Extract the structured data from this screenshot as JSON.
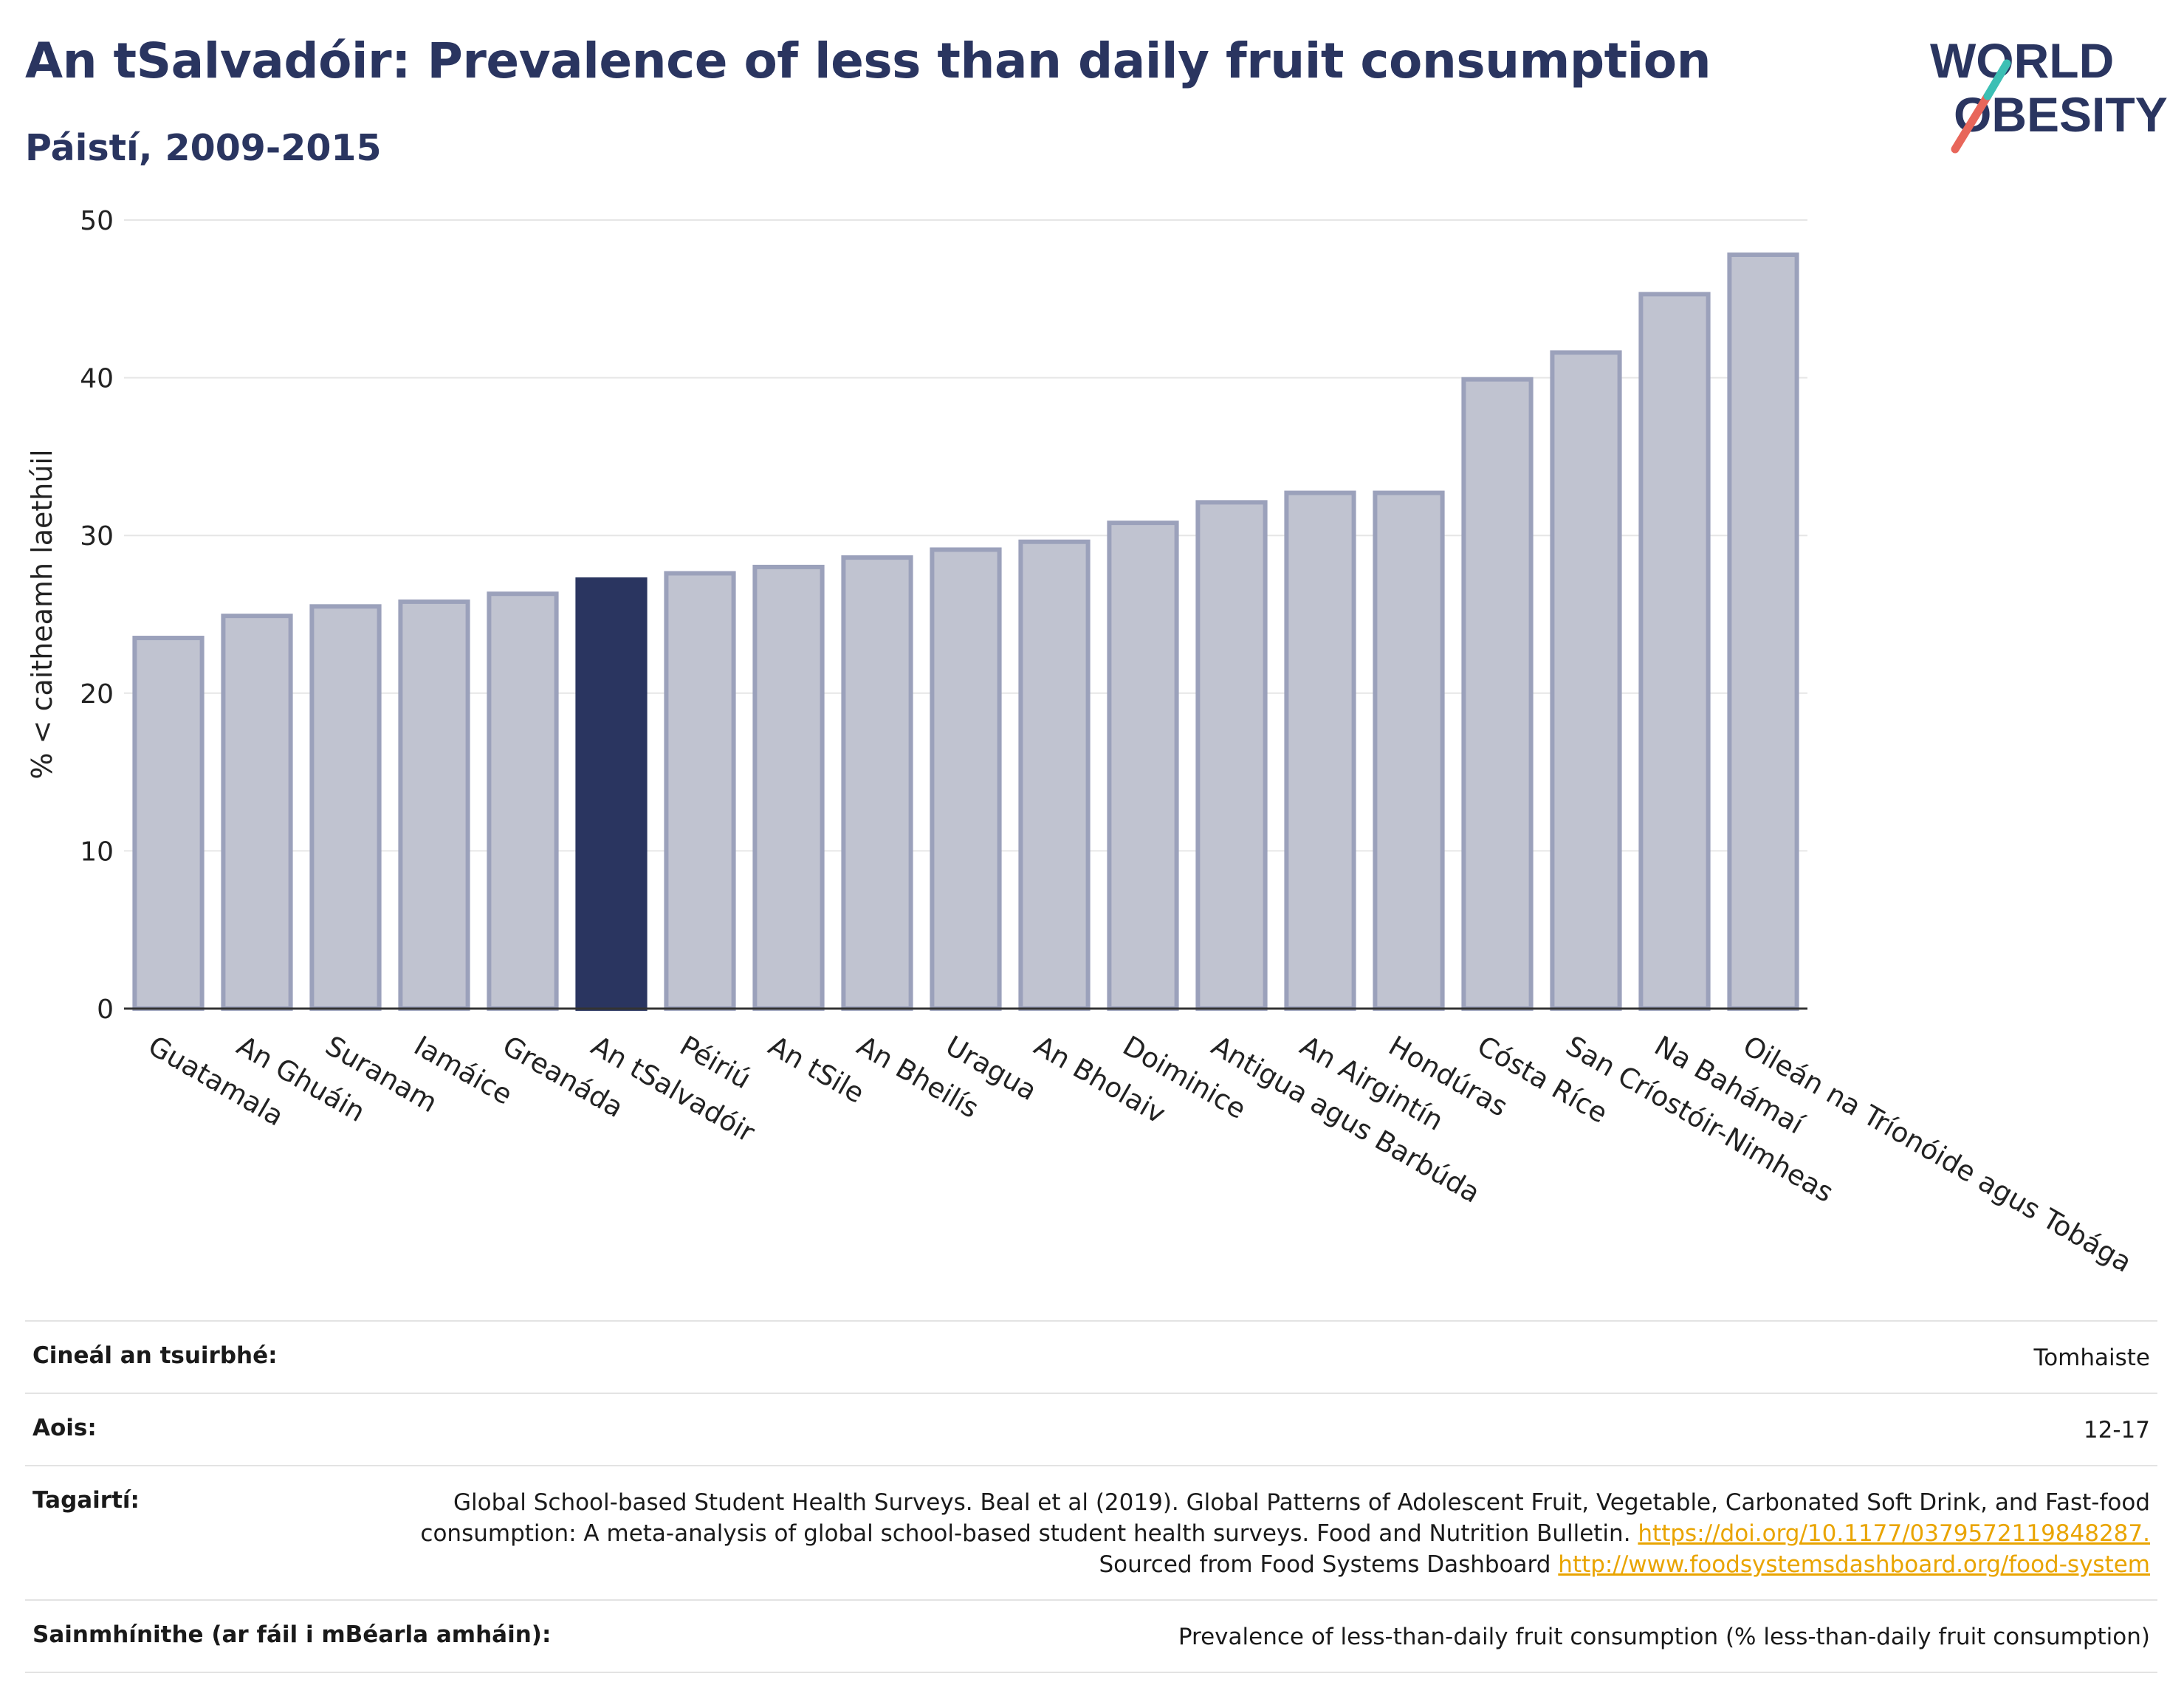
{
  "header": {
    "title": "An tSalvadóir: Prevalence of less than daily fruit consumption",
    "subtitle": "Páistí, 2009-2015"
  },
  "logo": {
    "line1": "WORLD",
    "line2": "OBESITY",
    "icon": "slash-mark",
    "colors": [
      "#2a3560",
      "#e8665a",
      "#3cbfb4"
    ]
  },
  "chart_data": {
    "type": "bar",
    "title": "An tSalvadóir: Prevalence of less than daily fruit consumption",
    "subtitle": "Páistí, 2009-2015",
    "ylabel": "% < caitheamh laethúil",
    "xlabel": "",
    "ylim": [
      0,
      50
    ],
    "yticks": [
      0,
      10,
      20,
      30,
      40,
      50
    ],
    "grid": true,
    "highlight": "An tSalvadóir",
    "colors": {
      "bar": "#c0c3d0",
      "bar_border": "#9ba1bb",
      "highlight": "#2a3560"
    },
    "categories": [
      "Guatamala",
      "An Ghuáin",
      "Suranam",
      "Iamáice",
      "Greanáda",
      "An tSalvadóir",
      "Péiriú",
      "An tSile",
      "An Bheilís",
      "Uragua",
      "An Bholaiv",
      "Doiminice",
      "Antigua agus Barbúda",
      "An Airgintín",
      "Hondúras",
      "Cósta Ríce",
      "San Críostóir-Nimheas",
      "Na Bahámaí",
      "Oileán na Tríonóide agus Tobága"
    ],
    "values": [
      23.5,
      24.9,
      25.5,
      25.8,
      26.3,
      27.2,
      27.6,
      28.0,
      28.6,
      29.1,
      29.6,
      30.8,
      32.1,
      32.7,
      32.7,
      39.9,
      41.6,
      45.3,
      47.8
    ]
  },
  "info": {
    "rows": [
      {
        "label": "Cineál an tsuirbhé:",
        "value": "Tomhaiste"
      },
      {
        "label": "Aois:",
        "value": "12-17"
      },
      {
        "label": "Tagairtí:",
        "text1": "Global School-based Student Health Surveys. Beal et al (2019). Global Patterns of Adolescent Fruit, Vegetable, Carbonated Soft Drink, and Fast-food consumption: A meta-analysis of global school-based student health surveys. Food and Nutrition Bulletin.",
        "link1": "https://doi.org/10.1177/0379572119848287.",
        "text2": "Sourced from Food Systems Dashboard",
        "link2": "http://www.foodsystemsdashboard.org/food-system"
      },
      {
        "label": "Sainmhínithe (ar fáil i mBéarla amháin):",
        "value": "Prevalence of less-than-daily fruit consumption (% less-than-daily fruit consumption)"
      }
    ]
  }
}
